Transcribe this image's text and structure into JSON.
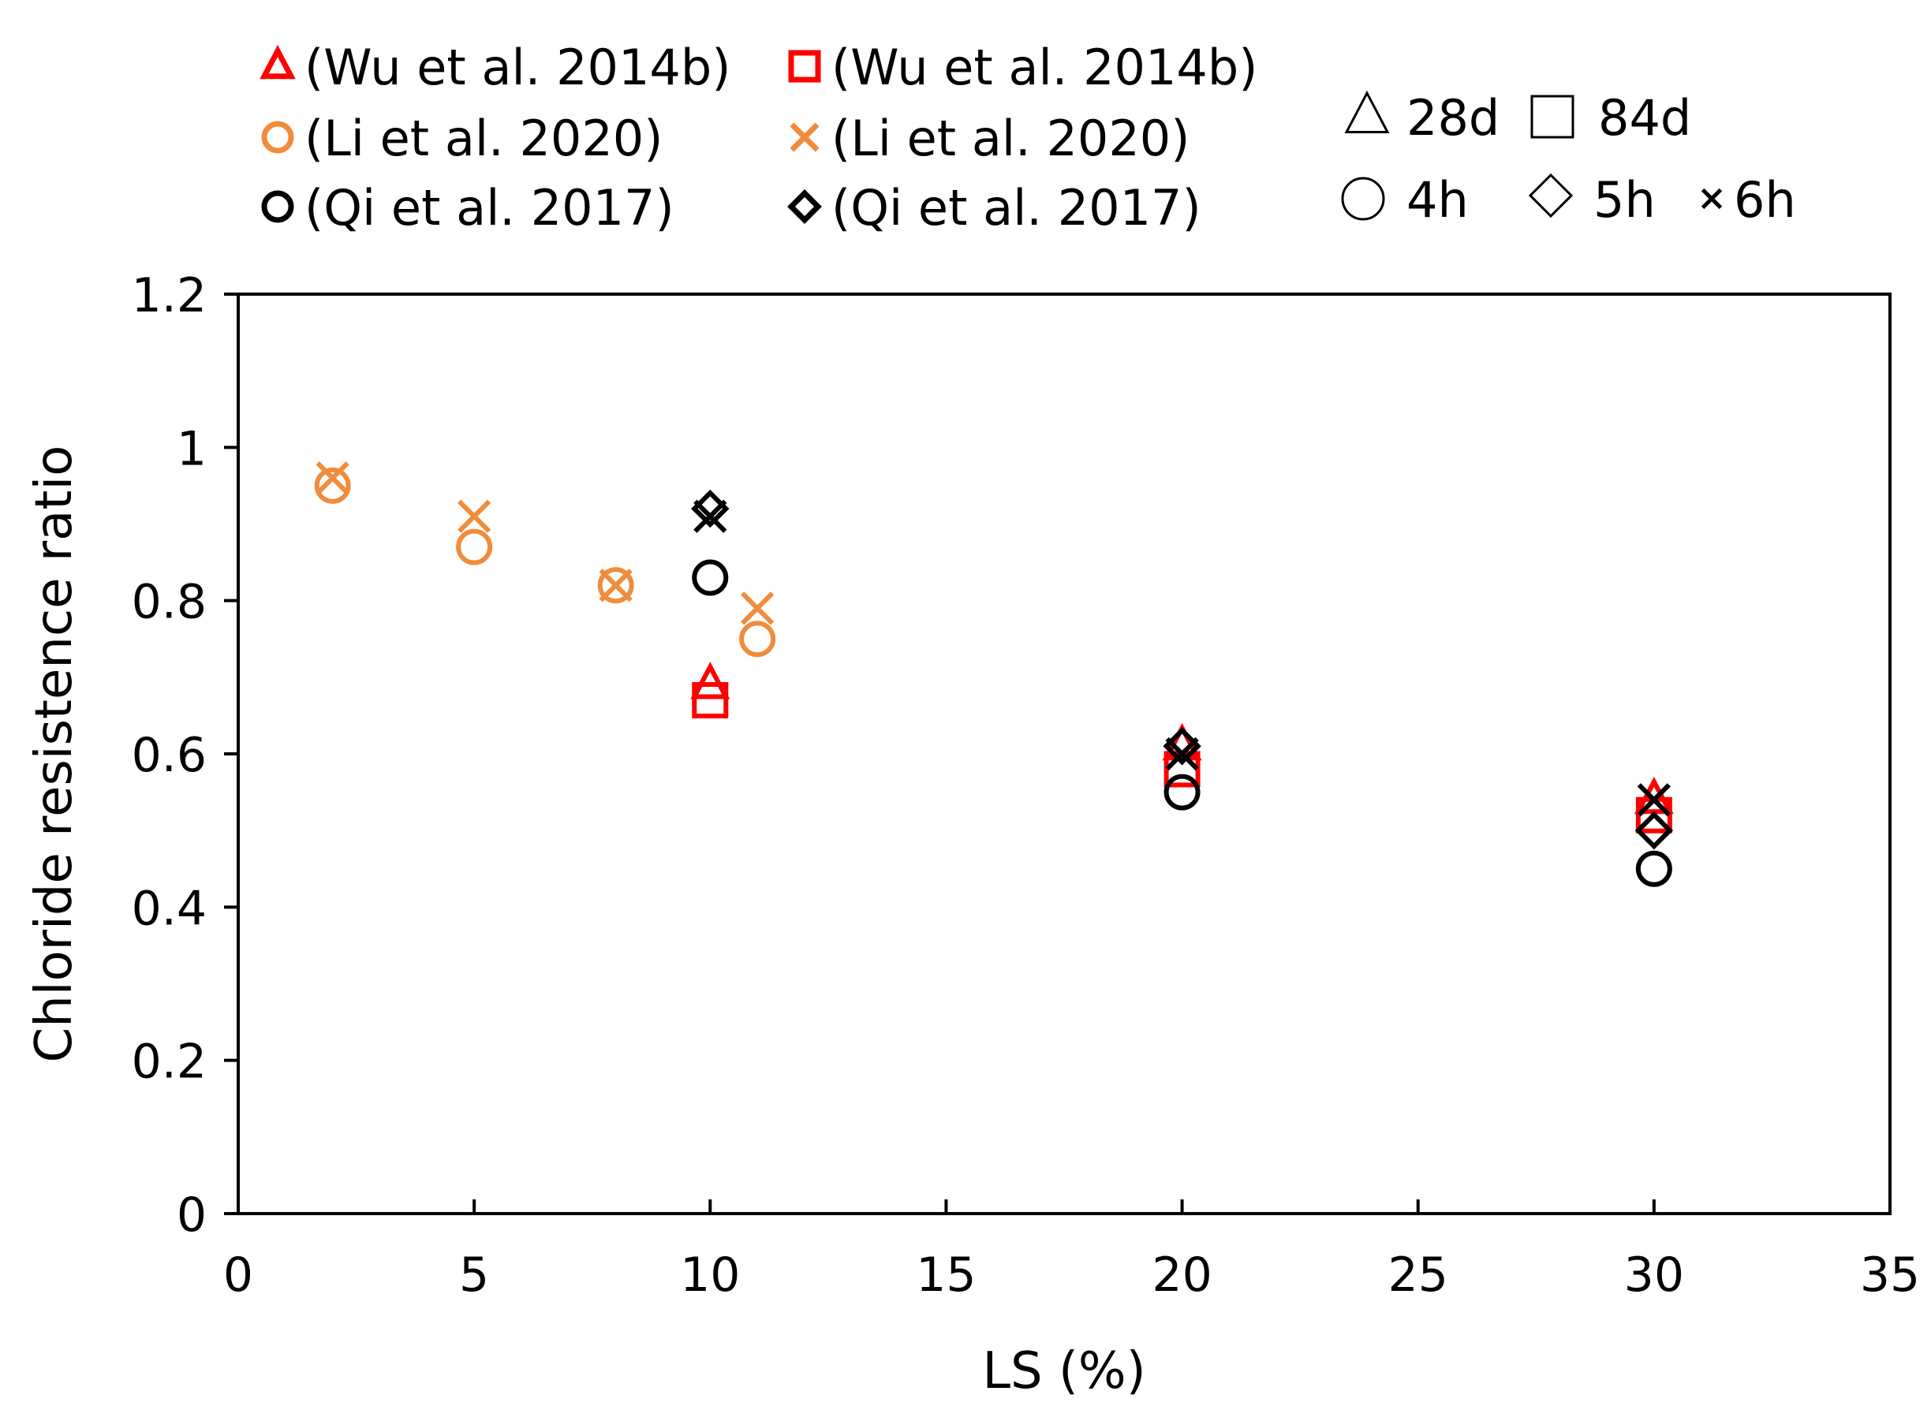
{
  "chart_data": {
    "type": "scatter",
    "title": "",
    "xlabel": "LS (%)",
    "ylabel": "Chloride resistence ratio",
    "xlim": [
      0,
      35
    ],
    "ylim": [
      0,
      1.2
    ],
    "x_ticks": [
      0,
      5,
      10,
      15,
      20,
      25,
      30,
      35
    ],
    "y_ticks": [
      0,
      0.2,
      0.4,
      0.6,
      0.8,
      1,
      1.2
    ],
    "x_tick_labels": [
      "0",
      "5",
      "10",
      "15",
      "20",
      "25",
      "30",
      "35"
    ],
    "y_tick_labels": [
      "0",
      "0.2",
      "0.4",
      "0.6",
      "0.8",
      "1",
      "1.2"
    ],
    "grid": false,
    "legend_position": "top",
    "series": [
      {
        "name": "(Wu et al. 2014b)",
        "marker": "triangle",
        "color": "#ff0000",
        "points": [
          {
            "x": 10,
            "y": 0.69
          },
          {
            "x": 20,
            "y": 0.61
          },
          {
            "x": 30,
            "y": 0.54
          }
        ]
      },
      {
        "name": "(Wu et al. 2014b)",
        "marker": "square",
        "color": "#ff0000",
        "points": [
          {
            "x": 10,
            "y": 0.67
          },
          {
            "x": 20,
            "y": 0.58
          },
          {
            "x": 30,
            "y": 0.52
          }
        ]
      },
      {
        "name": "(Li et al. 2020)",
        "marker": "circle",
        "color": "#f08c3c",
        "points": [
          {
            "x": 2,
            "y": 0.95
          },
          {
            "x": 5,
            "y": 0.87
          },
          {
            "x": 8,
            "y": 0.82
          },
          {
            "x": 11,
            "y": 0.75
          }
        ]
      },
      {
        "name": "(Li et al. 2020)",
        "marker": "x",
        "color": "#f08c3c",
        "points": [
          {
            "x": 2,
            "y": 0.96
          },
          {
            "x": 5,
            "y": 0.91
          },
          {
            "x": 8,
            "y": 0.82
          },
          {
            "x": 11,
            "y": 0.79
          }
        ]
      },
      {
        "name": "(Qi et al. 2017)",
        "marker": "circle",
        "color": "#000000",
        "points": [
          {
            "x": 10,
            "y": 0.83
          },
          {
            "x": 20,
            "y": 0.55
          },
          {
            "x": 30,
            "y": 0.45
          }
        ]
      },
      {
        "name": "(Qi et al. 2017)",
        "marker": "diamond",
        "color": "#000000",
        "points": [
          {
            "x": 10,
            "y": 0.92
          },
          {
            "x": 20,
            "y": 0.61
          },
          {
            "x": 30,
            "y": 0.5
          }
        ]
      },
      {
        "name": "",
        "marker": "x",
        "color": "#000000",
        "points": [
          {
            "x": 10,
            "y": 0.91
          },
          {
            "x": 20,
            "y": 0.6
          },
          {
            "x": 30,
            "y": 0.54
          }
        ]
      }
    ],
    "legend_entries": [
      {
        "label": "(Wu et al. 2014b)",
        "marker": "triangle",
        "color": "#ff0000"
      },
      {
        "label": "(Li et al. 2020)",
        "marker": "circle",
        "color": "#f08c3c"
      },
      {
        "label": "(Qi et al. 2017)",
        "marker": "circle",
        "color": "#000000"
      },
      {
        "label": "(Wu et al. 2014b)",
        "marker": "square",
        "color": "#ff0000"
      },
      {
        "label": "(Li et al. 2020)",
        "marker": "x",
        "color": "#f08c3c"
      },
      {
        "label": "(Qi et al. 2017)",
        "marker": "diamond",
        "color": "#000000"
      }
    ],
    "marker_key": [
      {
        "label": "28d",
        "marker": "triangle"
      },
      {
        "label": "84d",
        "marker": "square"
      },
      {
        "label": "4h",
        "marker": "circle"
      },
      {
        "label": "5h",
        "marker": "diamond"
      },
      {
        "label": "6h",
        "marker": "x"
      }
    ]
  }
}
